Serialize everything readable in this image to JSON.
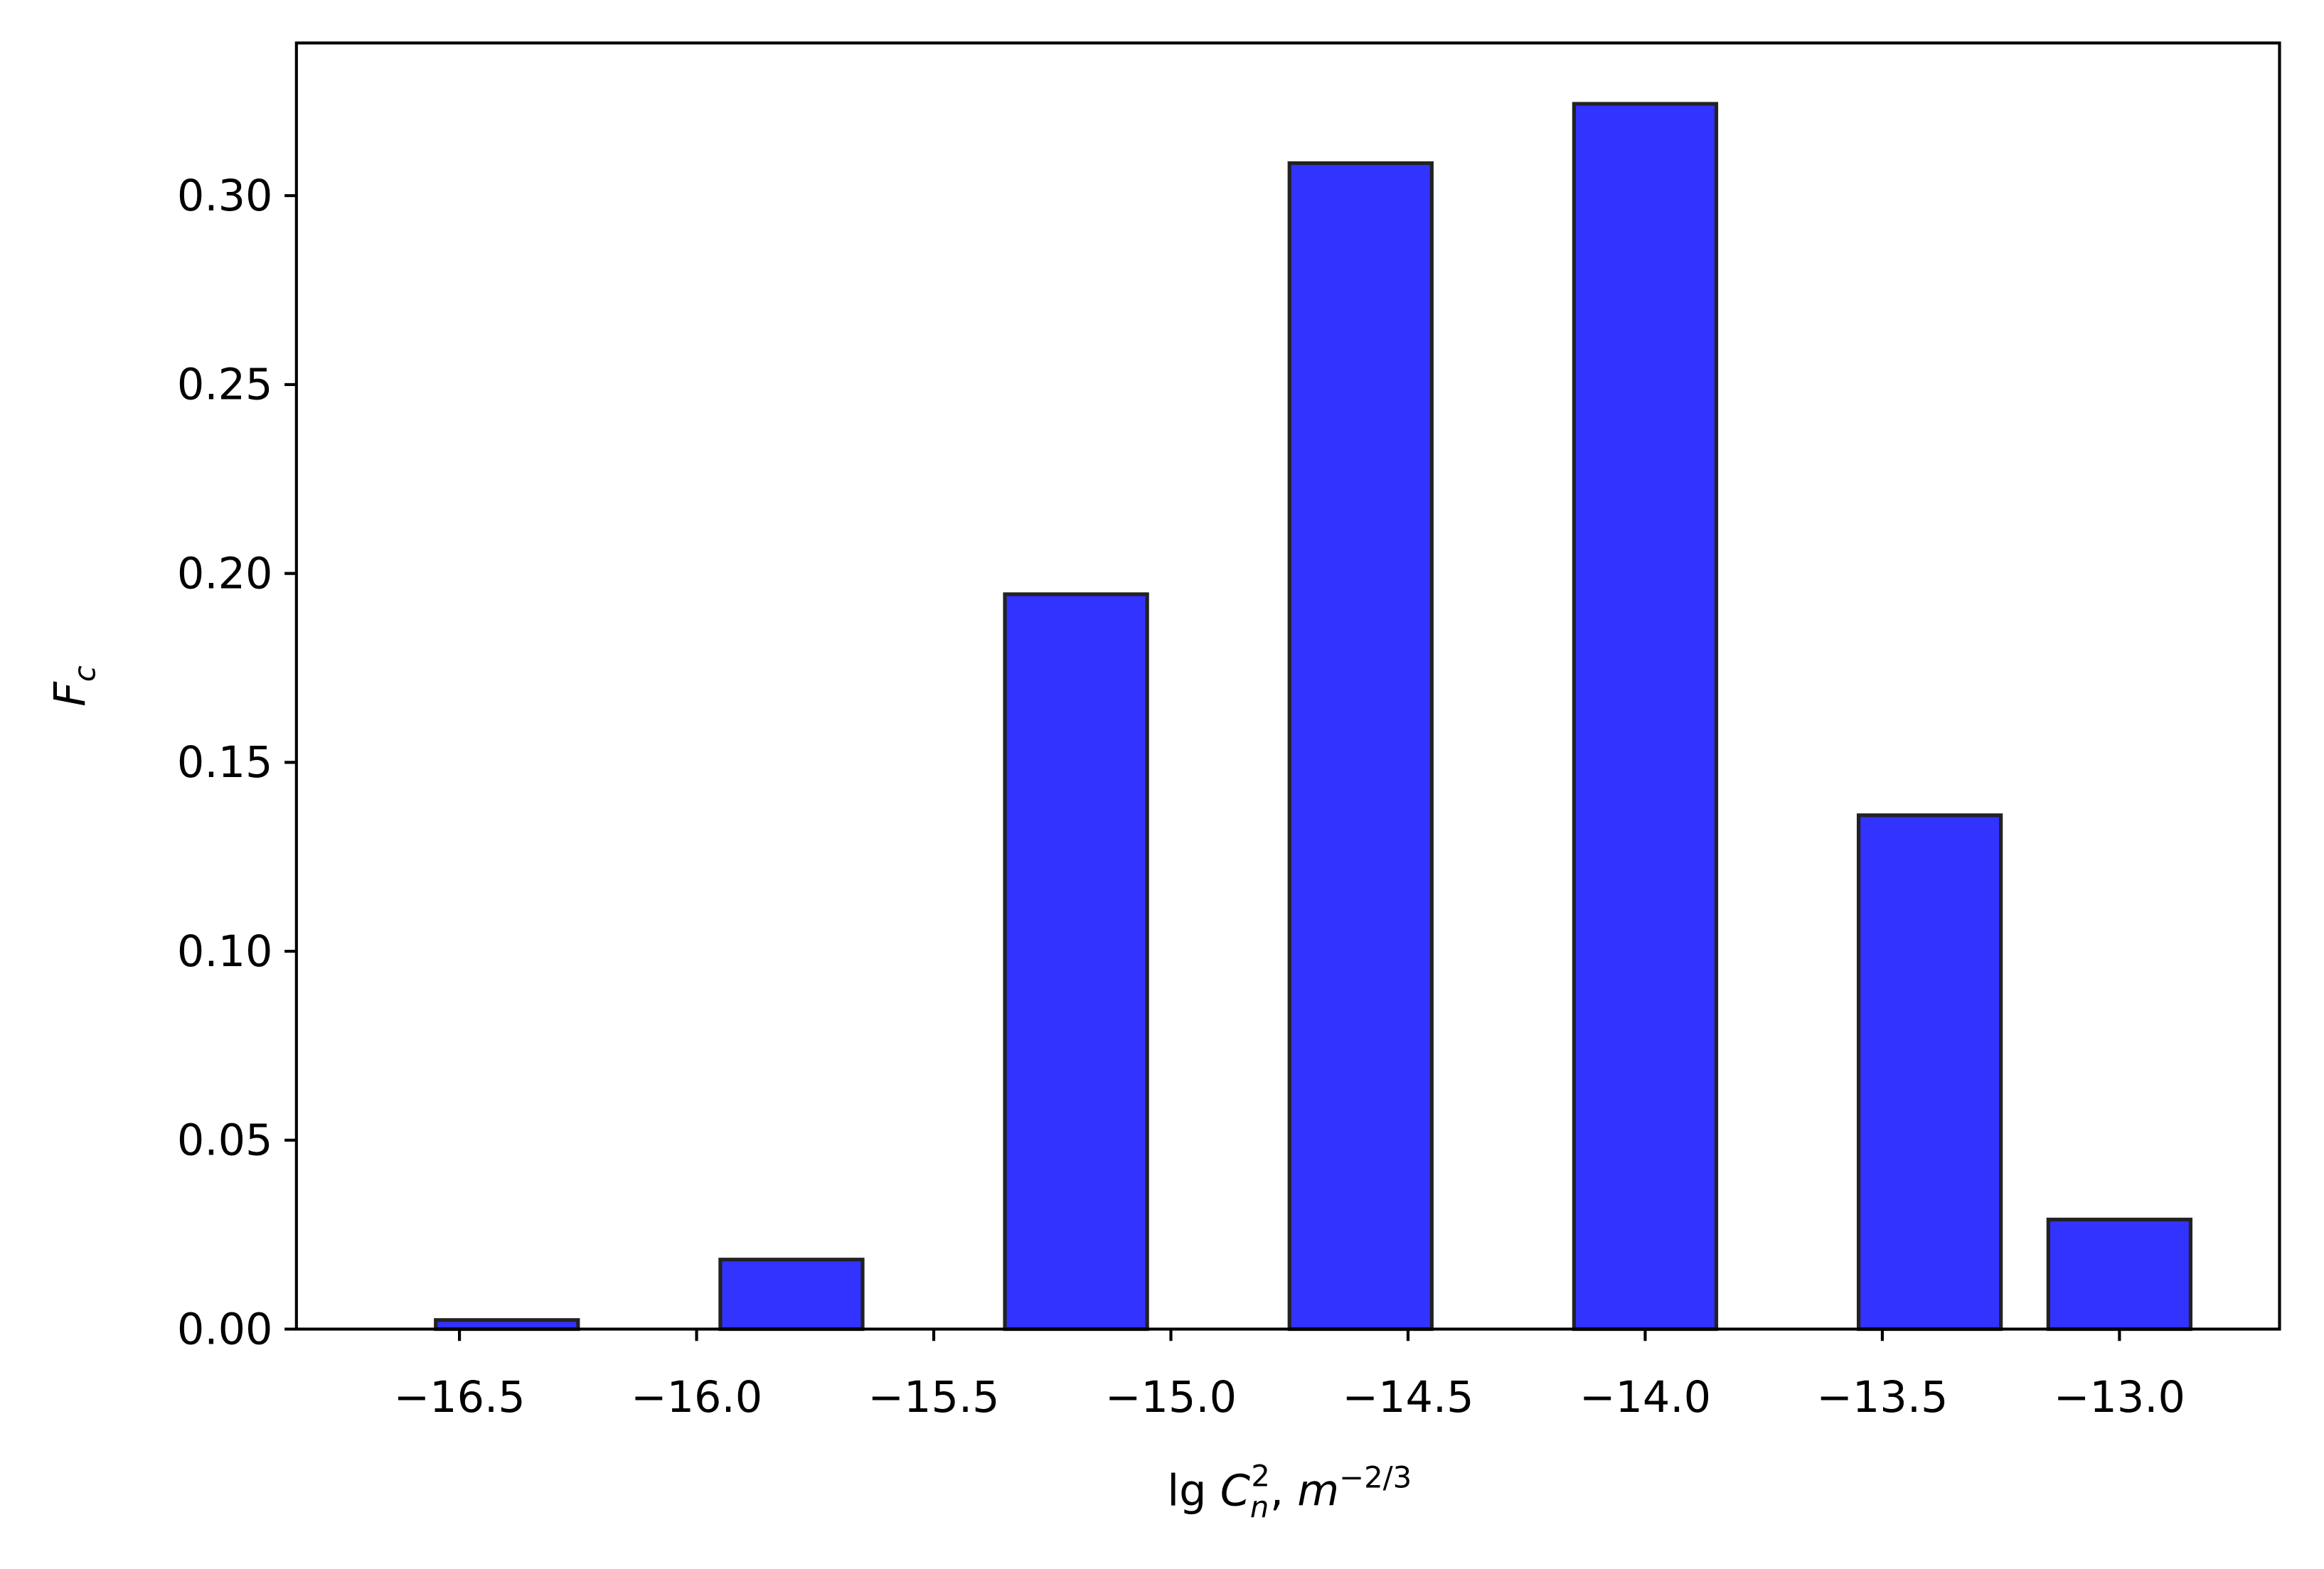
{
  "chart_data": {
    "type": "bar",
    "x": [
      -16.4,
      -15.8,
      -15.2,
      -14.6,
      -14.0,
      -13.4,
      -13.0
    ],
    "values": [
      0.0024,
      0.0184,
      0.1945,
      0.3086,
      0.3243,
      0.136,
      0.029
    ],
    "bar_width": 0.3,
    "color": "#3333ff",
    "edgecolor": "#222222",
    "xlim": [
      -16.84375,
      -12.6625
    ],
    "ylim": [
      0,
      0.3404
    ],
    "xticks": [
      {
        "value": -16.5,
        "label": "−16.5"
      },
      {
        "value": -16.0,
        "label": "−16.0"
      },
      {
        "value": -15.5,
        "label": "−15.5"
      },
      {
        "value": -15.0,
        "label": "−15.0"
      },
      {
        "value": -14.5,
        "label": "−14.5"
      },
      {
        "value": -14.0,
        "label": "−14.0"
      },
      {
        "value": -13.5,
        "label": "−13.5"
      },
      {
        "value": -13.0,
        "label": "−13.0"
      }
    ],
    "yticks": [
      {
        "value": 0,
        "label": "0.00"
      },
      {
        "value": 0.05,
        "label": "0.05"
      },
      {
        "value": 0.1,
        "label": "0.10"
      },
      {
        "value": 0.15,
        "label": "0.15"
      },
      {
        "value": 0.2,
        "label": "0.20"
      },
      {
        "value": 0.25,
        "label": "0.25"
      },
      {
        "value": 0.3,
        "label": "0.30"
      }
    ],
    "xlabel": [
      "lg ",
      "C",
      "n",
      "2",
      ", ",
      "m",
      "−2/3"
    ],
    "ylabel": [
      "F",
      "c"
    ],
    "grid": false
  }
}
